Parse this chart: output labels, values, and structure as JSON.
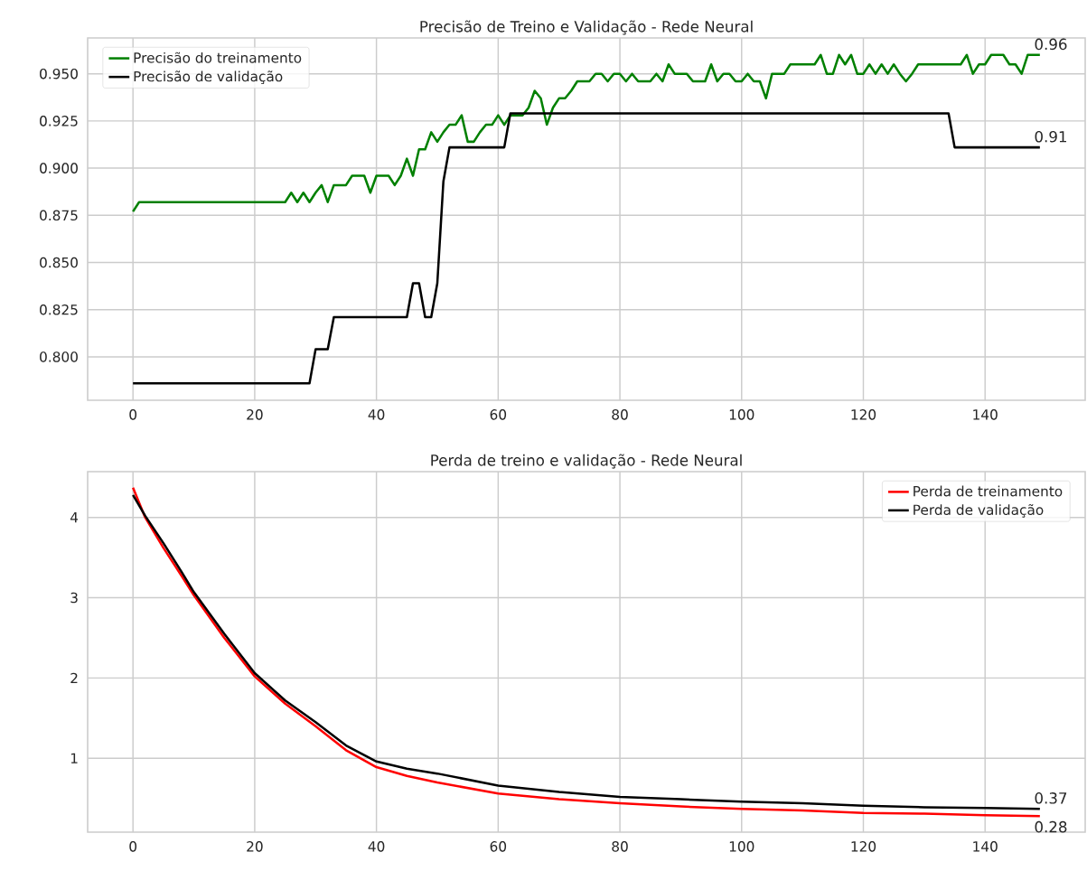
{
  "chart_data": [
    {
      "type": "line",
      "title": "Precisão de Treino e Validação - Rede Neural",
      "series": [
        {
          "name": "Precisão do treinamento",
          "color": "#008000",
          "x": [
            0,
            1,
            25,
            26,
            27,
            28,
            29,
            30,
            31,
            32,
            33,
            34,
            35,
            36,
            37,
            38,
            39,
            40,
            41,
            42,
            43,
            44,
            45,
            46,
            47,
            48,
            49,
            50,
            51,
            52,
            53,
            54,
            55,
            56,
            57,
            58,
            59,
            60,
            61,
            62,
            63,
            64,
            65,
            66,
            67,
            68,
            69,
            70,
            71,
            72,
            73,
            74,
            75,
            76,
            77,
            78,
            79,
            80,
            81,
            82,
            83,
            84,
            85,
            86,
            87,
            88,
            89,
            90,
            91,
            92,
            93,
            94,
            95,
            96,
            97,
            98,
            99,
            100,
            101,
            102,
            103,
            104,
            105,
            106,
            107,
            108,
            109,
            110,
            111,
            112,
            113,
            114,
            115,
            116,
            117,
            118,
            119,
            120,
            121,
            122,
            123,
            124,
            125,
            126,
            127,
            128,
            129,
            130,
            131,
            132,
            133,
            134,
            135,
            136,
            137,
            138,
            139,
            140,
            141,
            142,
            143,
            144,
            145,
            146,
            147,
            148,
            149
          ],
          "values": [
            0.877,
            0.882,
            0.882,
            0.887,
            0.882,
            0.887,
            0.882,
            0.887,
            0.891,
            0.882,
            0.891,
            0.891,
            0.891,
            0.896,
            0.896,
            0.896,
            0.887,
            0.896,
            0.896,
            0.896,
            0.891,
            0.896,
            0.905,
            0.896,
            0.91,
            0.91,
            0.919,
            0.914,
            0.919,
            0.923,
            0.923,
            0.928,
            0.914,
            0.914,
            0.919,
            0.923,
            0.923,
            0.928,
            0.923,
            0.928,
            0.928,
            0.928,
            0.932,
            0.941,
            0.937,
            0.923,
            0.932,
            0.937,
            0.937,
            0.941,
            0.946,
            0.946,
            0.946,
            0.95,
            0.95,
            0.946,
            0.95,
            0.95,
            0.946,
            0.95,
            0.946,
            0.946,
            0.946,
            0.95,
            0.946,
            0.955,
            0.95,
            0.95,
            0.95,
            0.946,
            0.946,
            0.946,
            0.955,
            0.946,
            0.95,
            0.95,
            0.946,
            0.946,
            0.95,
            0.946,
            0.946,
            0.937,
            0.95,
            0.95,
            0.95,
            0.955,
            0.955,
            0.955,
            0.955,
            0.955,
            0.96,
            0.95,
            0.95,
            0.96,
            0.955,
            0.96,
            0.95,
            0.95,
            0.955,
            0.95,
            0.955,
            0.95,
            0.955,
            0.95,
            0.946,
            0.95,
            0.955,
            0.955,
            0.955,
            0.955,
            0.955,
            0.955,
            0.955,
            0.955,
            0.96,
            0.95,
            0.955,
            0.955,
            0.96,
            0.96,
            0.96,
            0.955,
            0.955,
            0.95,
            0.96,
            0.96,
            0.96
          ],
          "value_labels": [
            null,
            null,
            null,
            null,
            null,
            null,
            null,
            null,
            null,
            null,
            null,
            null,
            null,
            null,
            null,
            null,
            null,
            null,
            null,
            null,
            null,
            null,
            null,
            null,
            null,
            null,
            null,
            null,
            null,
            null,
            null,
            null,
            null,
            null,
            null,
            null,
            null,
            null,
            null,
            null,
            null,
            null,
            null,
            null,
            null,
            null,
            null,
            null,
            null,
            null,
            null,
            null,
            null,
            null,
            null,
            null,
            null,
            null,
            null,
            null,
            null,
            null,
            null,
            null,
            null,
            null,
            null,
            null,
            null,
            null,
            null,
            null,
            null,
            null,
            null,
            null,
            null,
            null,
            null,
            null,
            null,
            null,
            null,
            null,
            null,
            null,
            null,
            null,
            null,
            null,
            null,
            null,
            null,
            null,
            null,
            null,
            null,
            null,
            null,
            null,
            null,
            null,
            null,
            null,
            null,
            null,
            null,
            null,
            null,
            null,
            null,
            null,
            null,
            null,
            null,
            null,
            null,
            null,
            null,
            null,
            null,
            null,
            null,
            null,
            null,
            null,
            "0.96"
          ]
        },
        {
          "name": "Precisão de validação",
          "color": "#000000",
          "x": [
            0,
            29,
            30,
            32,
            33,
            45,
            46,
            47,
            48,
            49,
            50,
            51,
            52,
            61,
            62,
            134,
            135,
            149
          ],
          "values": [
            0.786,
            0.786,
            0.804,
            0.804,
            0.821,
            0.821,
            0.839,
            0.839,
            0.821,
            0.821,
            0.839,
            0.893,
            0.911,
            0.911,
            0.929,
            0.929,
            0.911,
            0.911
          ],
          "value_labels": [
            null,
            null,
            null,
            null,
            null,
            null,
            null,
            null,
            null,
            null,
            null,
            null,
            null,
            null,
            null,
            null,
            null,
            "0.91"
          ]
        }
      ],
      "xlim": [
        -7.45,
        156.45
      ],
      "xticks": [
        0,
        20,
        40,
        60,
        80,
        100,
        120,
        140
      ],
      "ylim": [
        0.777,
        0.969
      ],
      "yticks": [
        {
          "value": 0.8,
          "label": "0.800"
        },
        {
          "value": 0.825,
          "label": "0.825"
        },
        {
          "value": 0.85,
          "label": "0.850"
        },
        {
          "value": 0.875,
          "label": "0.875"
        },
        {
          "value": 0.9,
          "label": "0.900"
        },
        {
          "value": 0.925,
          "label": "0.925"
        },
        {
          "value": 0.95,
          "label": "0.950"
        }
      ],
      "grid": true,
      "legend": "top left",
      "marker": "none",
      "line_style": "solid"
    },
    {
      "type": "line",
      "title": "Perda de treino e validação - Rede Neural",
      "series": [
        {
          "name": "Perda de treinamento",
          "color": "#ff0000",
          "x": [
            0,
            2,
            5,
            8,
            10,
            15,
            20,
            25,
            30,
            35,
            40,
            45,
            50,
            60,
            70,
            80,
            90,
            100,
            110,
            120,
            130,
            140,
            149
          ],
          "values": [
            4.37,
            4.0,
            3.62,
            3.27,
            3.03,
            2.5,
            2.02,
            1.68,
            1.4,
            1.1,
            0.89,
            0.78,
            0.7,
            0.56,
            0.49,
            0.44,
            0.4,
            0.37,
            0.35,
            0.32,
            0.31,
            0.29,
            0.28
          ],
          "value_labels": [
            null,
            null,
            null,
            null,
            null,
            null,
            null,
            null,
            null,
            null,
            null,
            null,
            null,
            null,
            null,
            null,
            null,
            null,
            null,
            null,
            null,
            null,
            "0.28"
          ]
        },
        {
          "name": "Perda de validação",
          "color": "#000000",
          "x": [
            0,
            2,
            5,
            8,
            10,
            15,
            20,
            25,
            30,
            35,
            40,
            45,
            50,
            60,
            70,
            80,
            90,
            100,
            110,
            120,
            130,
            140,
            149
          ],
          "values": [
            4.28,
            4.02,
            3.68,
            3.32,
            3.07,
            2.55,
            2.06,
            1.72,
            1.45,
            1.16,
            0.96,
            0.87,
            0.81,
            0.66,
            0.58,
            0.52,
            0.49,
            0.46,
            0.44,
            0.41,
            0.39,
            0.38,
            0.37
          ],
          "value_labels": [
            null,
            null,
            null,
            null,
            null,
            null,
            null,
            null,
            null,
            null,
            null,
            null,
            null,
            null,
            null,
            null,
            null,
            null,
            null,
            null,
            null,
            null,
            "0.37"
          ]
        }
      ],
      "xlim": [
        -7.45,
        156.45
      ],
      "xticks": [
        0,
        20,
        40,
        60,
        80,
        100,
        120,
        140
      ],
      "ylim": [
        0.08,
        4.57
      ],
      "yticks": [
        1,
        2,
        3,
        4
      ],
      "grid": true,
      "legend": "top right",
      "marker": "none",
      "line_style": "solid"
    }
  ]
}
